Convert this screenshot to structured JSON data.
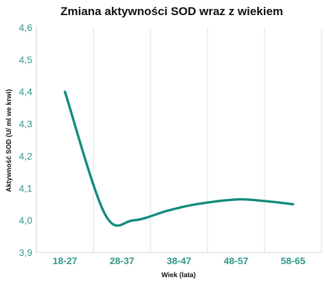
{
  "chart_data": {
    "type": "line",
    "title": "Zmiana aktywności SOD wraz z wiekiem",
    "xlabel": "Wiek (lata)",
    "ylabel": "Aktywność SOD (U/ ml we krwi)",
    "categories": [
      "18-27",
      "28-37",
      "38-47",
      "48-57",
      "58-65"
    ],
    "y_ticks": [
      "3,9",
      "4,0",
      "4,1",
      "4,2",
      "4,3",
      "4,4",
      "4,5",
      "4,6"
    ],
    "ylim": [
      3.9,
      4.6
    ],
    "grid": "vertical",
    "series": [
      {
        "x": [
          1,
          1.7,
          2.2,
          2.8,
          3.3,
          4,
          4.5,
          5
        ],
        "values": [
          4.4,
          4.02,
          4.0,
          4.03,
          4.05,
          4.065,
          4.06,
          4.05
        ]
      }
    ],
    "line_color": "#138c7c"
  }
}
